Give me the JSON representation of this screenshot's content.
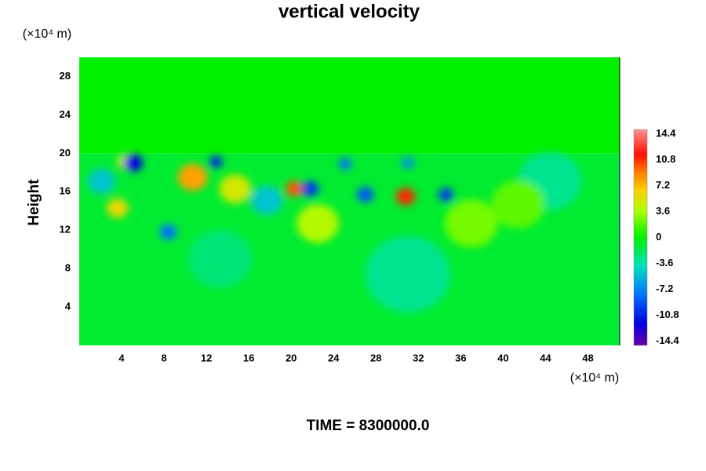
{
  "chart_data": {
    "type": "contour",
    "title": "vertical velocity",
    "y_label": "Height",
    "y_unit": "(×10⁴ m)",
    "x_unit": "(×10⁴ m)",
    "footer": "TIME = 8300000.0",
    "xlim": [
      0,
      51
    ],
    "ylim": [
      0,
      30
    ],
    "xticks": [
      4,
      8,
      12,
      16,
      20,
      24,
      28,
      32,
      36,
      40,
      44,
      48
    ],
    "yticks": [
      4,
      8,
      12,
      16,
      20,
      24,
      28
    ],
    "clim": [
      -15,
      15
    ],
    "cticks": [
      -14.4,
      -10.8,
      -7.2,
      -3.6,
      0,
      3.6,
      7.2,
      10.8,
      14.4
    ],
    "colorscale": [
      [
        -15,
        "#6a00a8"
      ],
      [
        -12,
        "#0000e0"
      ],
      [
        -8,
        "#0070ff"
      ],
      [
        -4,
        "#00e0c0"
      ],
      [
        0,
        "#00f000"
      ],
      [
        3.6,
        "#a8ff00"
      ],
      [
        6.5,
        "#ffd000"
      ],
      [
        9,
        "#ff8000"
      ],
      [
        11.5,
        "#ff1000"
      ],
      [
        15,
        "#ff9090"
      ]
    ],
    "layers": [
      {
        "y0": 0,
        "y1": 20,
        "value": -1
      },
      {
        "y0": 20,
        "y1": 30,
        "value": 0
      }
    ],
    "blobs": [
      {
        "x": 31,
        "y": 7.4,
        "value": -3,
        "r": 4
      },
      {
        "x": 13.3,
        "y": 9,
        "value": -2.5,
        "r": 3
      },
      {
        "x": 44.4,
        "y": 17.1,
        "value": -3,
        "r": 3
      },
      {
        "x": 37,
        "y": 12.7,
        "value": 2.5,
        "r": 2.5
      },
      {
        "x": 41.4,
        "y": 14.7,
        "value": 2,
        "r": 2.5
      },
      {
        "x": 22.5,
        "y": 12.7,
        "value": 4,
        "r": 2
      },
      {
        "x": 2.1,
        "y": 17.1,
        "value": -5,
        "r": 1.3
      },
      {
        "x": 17.7,
        "y": 15.1,
        "value": -5,
        "r": 1.5
      },
      {
        "x": 14.7,
        "y": 16.3,
        "value": 5,
        "r": 1.5
      },
      {
        "x": 3.6,
        "y": 14.3,
        "value": 6,
        "r": 1
      },
      {
        "x": 4.4,
        "y": 19.1,
        "value": 5,
        "r": 0.8
      },
      {
        "x": 8.4,
        "y": 11.8,
        "value": -8,
        "r": 0.8
      },
      {
        "x": 10.7,
        "y": 17.5,
        "value": 8,
        "r": 1.4
      },
      {
        "x": 5.1,
        "y": 19,
        "value": -12,
        "r": 0.9
      },
      {
        "x": 12.9,
        "y": 19.1,
        "value": -11,
        "r": 0.6
      },
      {
        "x": 20.3,
        "y": 16.3,
        "value": 10,
        "r": 0.8
      },
      {
        "x": 21.8,
        "y": 16.3,
        "value": -10,
        "r": 0.8
      },
      {
        "x": 25.1,
        "y": 18.9,
        "value": -8,
        "r": 0.6
      },
      {
        "x": 27,
        "y": 15.7,
        "value": -9,
        "r": 0.8
      },
      {
        "x": 31,
        "y": 19,
        "value": -7,
        "r": 0.6
      },
      {
        "x": 30.8,
        "y": 15.5,
        "value": 11,
        "r": 0.9
      },
      {
        "x": 34.6,
        "y": 15.7,
        "value": -10,
        "r": 0.7
      }
    ]
  }
}
